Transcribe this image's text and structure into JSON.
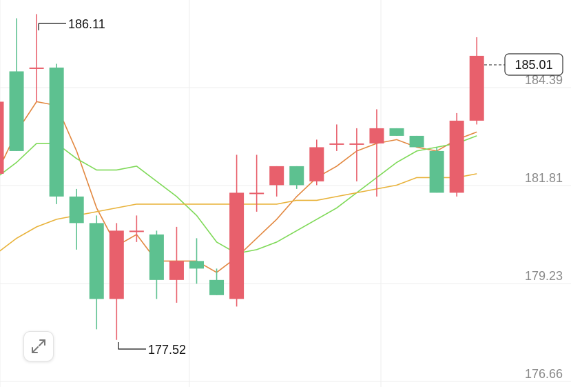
{
  "chart_data": {
    "type": "candlestick",
    "y_axis_ticks": [
      "184.39",
      "181.81",
      "179.23",
      "176.66"
    ],
    "ylim": [
      176.66,
      186.6
    ],
    "candles": [
      {
        "open": 181.9,
        "close": 183.8,
        "high": 183.8,
        "low": 181.9
      },
      {
        "open": 184.6,
        "close": 182.5,
        "high": 186.0,
        "low": 182.5
      },
      {
        "open": 184.7,
        "close": 184.7,
        "high": 186.11,
        "low": 183.8
      },
      {
        "open": 184.7,
        "close": 181.3,
        "high": 184.8,
        "low": 181.1
      },
      {
        "open": 181.3,
        "close": 180.6,
        "high": 181.5,
        "low": 179.9
      },
      {
        "open": 180.6,
        "close": 178.6,
        "high": 180.8,
        "low": 177.8
      },
      {
        "open": 178.6,
        "close": 180.4,
        "high": 180.6,
        "low": 177.52
      },
      {
        "open": 180.4,
        "close": 180.4,
        "high": 180.8,
        "low": 180.1
      },
      {
        "open": 180.3,
        "close": 179.1,
        "high": 180.4,
        "low": 178.6
      },
      {
        "open": 179.1,
        "close": 179.6,
        "high": 180.5,
        "low": 178.5
      },
      {
        "open": 179.6,
        "close": 179.4,
        "high": 180.2,
        "low": 179.0
      },
      {
        "open": 179.1,
        "close": 178.7,
        "high": 179.4,
        "low": 178.7
      },
      {
        "open": 178.6,
        "close": 181.4,
        "high": 182.4,
        "low": 178.4
      },
      {
        "open": 181.4,
        "close": 181.4,
        "high": 182.4,
        "low": 180.9
      },
      {
        "open": 181.6,
        "close": 182.1,
        "high": 182.1,
        "low": 181.3
      },
      {
        "open": 182.1,
        "close": 181.6,
        "high": 182.1,
        "low": 181.5
      },
      {
        "open": 181.7,
        "close": 182.6,
        "high": 182.8,
        "low": 181.6
      },
      {
        "open": 182.7,
        "close": 182.7,
        "high": 183.2,
        "low": 182.5
      },
      {
        "open": 182.7,
        "close": 182.7,
        "high": 183.1,
        "low": 181.7
      },
      {
        "open": 182.7,
        "close": 183.1,
        "high": 183.6,
        "low": 181.3
      },
      {
        "open": 183.1,
        "close": 182.9,
        "high": 183.1,
        "low": 182.9
      },
      {
        "open": 182.9,
        "close": 182.6,
        "high": 182.9,
        "low": 182.6
      },
      {
        "open": 182.5,
        "close": 181.4,
        "high": 182.6,
        "low": 181.4
      },
      {
        "open": 181.4,
        "close": 183.3,
        "high": 183.5,
        "low": 181.3
      },
      {
        "open": 183.3,
        "close": 185.01,
        "high": 185.5,
        "low": 183.2
      }
    ],
    "ma_lines": [
      {
        "color": "#e2873f",
        "values": [
          181.9,
          183.0,
          183.8,
          183.7,
          182.5,
          181.0,
          180.0,
          180.3,
          179.6,
          179.6,
          179.6,
          179.3,
          179.7,
          180.2,
          180.7,
          181.3,
          181.8,
          182.1,
          182.5,
          182.7,
          182.8,
          182.6,
          182.5,
          182.8,
          183.0
        ]
      },
      {
        "color": "#7ed957",
        "values": [
          181.8,
          182.2,
          182.7,
          182.7,
          182.3,
          182.0,
          182.0,
          182.1,
          181.7,
          181.3,
          180.8,
          180.1,
          179.8,
          179.9,
          180.1,
          180.4,
          180.7,
          181.0,
          181.4,
          181.8,
          182.2,
          182.5,
          182.6,
          182.7,
          182.9
        ]
      },
      {
        "color": "#e8b23a",
        "values": [
          179.8,
          180.2,
          180.5,
          180.7,
          180.8,
          180.9,
          181.0,
          181.1,
          181.1,
          181.1,
          181.1,
          181.1,
          181.1,
          181.1,
          181.1,
          181.2,
          181.2,
          181.3,
          181.4,
          181.5,
          181.6,
          181.8,
          181.8,
          181.8,
          181.9
        ]
      }
    ],
    "callouts": {
      "high": "186.11",
      "low": "177.52"
    },
    "last_price": "185.01",
    "colors": {
      "up": "#e8606c",
      "down": "#5dc190",
      "grid": "#ededed"
    }
  },
  "controls": {
    "expand_icon": "expand-arrows-icon"
  }
}
